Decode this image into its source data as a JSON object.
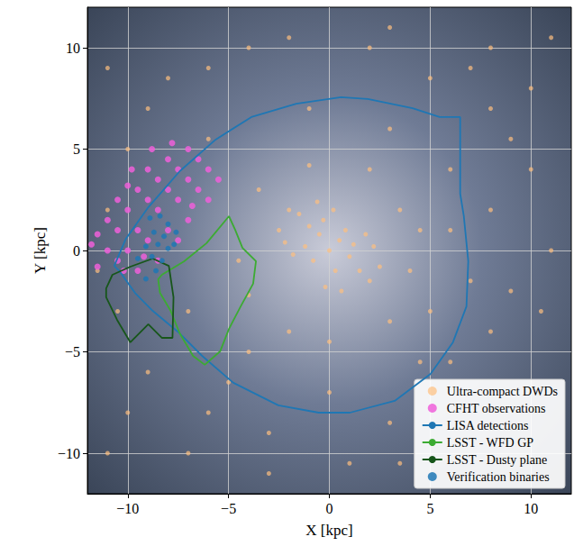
{
  "chart_data": {
    "type": "scatter",
    "x_label": "X [kpc]",
    "y_label": "Y [kpc]",
    "xlim": [
      -12,
      12
    ],
    "ylim": [
      -12,
      12
    ],
    "xticks": [
      {
        "value": -10,
        "label": "−10"
      },
      {
        "value": -5,
        "label": "−5"
      },
      0,
      5,
      10
    ],
    "yticks": [
      {
        "value": -10,
        "label": "−10"
      },
      {
        "value": -5,
        "label": "−5"
      },
      0,
      5,
      10
    ],
    "grid": true,
    "legend": "lower right",
    "series": [
      {
        "name": "Ultra-compact DWDs",
        "type": "scatter",
        "marker": "circle",
        "color": "#fdbf7f",
        "values": [
          [
            0,
            0
          ],
          [
            0.5,
            0.5
          ],
          [
            -0.5,
            0.8
          ],
          [
            1,
            -0.3
          ],
          [
            -1,
            1.2
          ],
          [
            1.5,
            -1
          ],
          [
            -1.5,
            1.8
          ],
          [
            0.3,
            -1
          ],
          [
            -0.3,
            1.5
          ],
          [
            0.8,
            1
          ],
          [
            -0.8,
            -0.5
          ],
          [
            2,
            -1.5
          ],
          [
            -2,
            2
          ],
          [
            1.2,
            0.3
          ],
          [
            -1.2,
            0.2
          ],
          [
            0.2,
            2
          ],
          [
            -0.2,
            -1.8
          ],
          [
            2.5,
            -0.8
          ],
          [
            -2.5,
            1
          ],
          [
            1.8,
            0.8
          ],
          [
            -1.8,
            -0.2
          ],
          [
            0.6,
            -2
          ],
          [
            -0.6,
            2.4
          ],
          [
            2.2,
            0.2
          ],
          [
            -2.2,
            0.4
          ],
          [
            3.5,
            2
          ],
          [
            4,
            -1
          ],
          [
            -4,
            -2.2
          ],
          [
            2,
            4
          ],
          [
            -1,
            4.2
          ],
          [
            -3.5,
            3
          ],
          [
            0,
            -4.5
          ],
          [
            3,
            -3.5
          ],
          [
            -2,
            -4
          ],
          [
            4.5,
            1
          ],
          [
            -4.5,
            -0.5
          ],
          [
            6,
            4
          ],
          [
            8,
            2
          ],
          [
            9,
            -2
          ],
          [
            8,
            -4
          ],
          [
            6,
            -5.5
          ],
          [
            3,
            -8.5
          ],
          [
            -3,
            -9
          ],
          [
            -6,
            -8
          ],
          [
            -9,
            -6
          ],
          [
            -10.5,
            -3
          ],
          [
            -11,
            2
          ],
          [
            -9,
            7
          ],
          [
            -6,
            9
          ],
          [
            -2,
            10.5
          ],
          [
            2,
            10
          ],
          [
            5,
            8.5
          ],
          [
            8,
            7
          ],
          [
            10,
            4
          ],
          [
            11,
            0
          ],
          [
            10.5,
            -3
          ],
          [
            9,
            5.5
          ],
          [
            7,
            9
          ],
          [
            3,
            11
          ],
          [
            -4,
            10
          ],
          [
            -8,
            8.5
          ],
          [
            -10,
            5
          ],
          [
            -11.5,
            -1
          ],
          [
            -10,
            -8
          ],
          [
            -7,
            -10
          ],
          [
            -3,
            -11
          ],
          [
            1,
            -10.5
          ],
          [
            3.5,
            -10.5
          ],
          [
            -5,
            -6.5
          ],
          [
            -7,
            -3
          ],
          [
            5,
            -3
          ],
          [
            6,
            1
          ],
          [
            -6,
            5.5
          ],
          [
            -1,
            7
          ],
          [
            3,
            6
          ],
          [
            4.5,
            -5.5
          ],
          [
            8,
            10
          ],
          [
            11,
            10.5
          ],
          [
            10,
            8
          ],
          [
            -11,
            9
          ],
          [
            -11,
            -10
          ],
          [
            0,
            -7
          ],
          [
            -4,
            -5
          ],
          [
            7,
            -1.5
          ]
        ]
      },
      {
        "name": "CFHT observations",
        "type": "scatter",
        "marker": "circle",
        "color": "#ef5fd9",
        "values": [
          [
            -11.5,
            -0.8
          ],
          [
            -11,
            0
          ],
          [
            -11.5,
            0.8
          ],
          [
            -10.5,
            -0.5
          ],
          [
            -10.5,
            1
          ],
          [
            -10,
            2
          ],
          [
            -10,
            0
          ],
          [
            -9.5,
            3
          ],
          [
            -9.5,
            1
          ],
          [
            -9.5,
            -1
          ],
          [
            -9,
            4
          ],
          [
            -9,
            2.5
          ],
          [
            -9,
            0.5
          ],
          [
            -8.5,
            3.5
          ],
          [
            -8.5,
            2
          ],
          [
            -8.5,
            -0.5
          ],
          [
            -8,
            4.5
          ],
          [
            -8,
            3
          ],
          [
            -8,
            1
          ],
          [
            -7.5,
            4
          ],
          [
            -7.5,
            2.5
          ],
          [
            -7.5,
            0.5
          ],
          [
            -7,
            5
          ],
          [
            -7,
            3.5
          ],
          [
            -7,
            1.5
          ],
          [
            -6.5,
            4.5
          ],
          [
            -6.5,
            3
          ],
          [
            -6,
            4
          ],
          [
            -6,
            2.5
          ],
          [
            -5.5,
            3.5
          ],
          [
            -11,
            1.5
          ],
          [
            -10.5,
            2.5
          ],
          [
            -10,
            3.2
          ],
          [
            -11.8,
            0.3
          ],
          [
            -9.8,
            4
          ],
          [
            -8.8,
            5
          ],
          [
            -7.8,
            5.3
          ],
          [
            -6.8,
            2.2
          ],
          [
            -9.2,
            -0.3
          ],
          [
            -10.2,
            -1
          ]
        ]
      },
      {
        "name": "LISA detections",
        "type": "line",
        "line_style": "solid",
        "color": "#1f77b4",
        "values": [
          [
            -10.67,
            -0.76
          ],
          [
            -10.09,
            0.58
          ],
          [
            -8.98,
            2.13
          ],
          [
            -7.42,
            3.91
          ],
          [
            -5.64,
            5.47
          ],
          [
            -3.87,
            6.58
          ],
          [
            -1.64,
            7.24
          ],
          [
            0.58,
            7.56
          ],
          [
            1.91,
            7.47
          ],
          [
            4.13,
            7.02
          ],
          [
            5.47,
            6.58
          ],
          [
            6.49,
            6.58
          ],
          [
            6.49,
            2.8
          ],
          [
            6.67,
            1.69
          ],
          [
            6.89,
            -0.53
          ],
          [
            6.8,
            -2.76
          ],
          [
            6.13,
            -4.53
          ],
          [
            5.02,
            -6.09
          ],
          [
            3.24,
            -7.42
          ],
          [
            1.02,
            -8.0
          ],
          [
            -0.53,
            -8.0
          ],
          [
            -2.53,
            -7.64
          ],
          [
            -4.76,
            -6.53
          ],
          [
            -6.31,
            -5.2
          ],
          [
            -7.42,
            -4.09
          ],
          [
            -8.76,
            -2.98
          ],
          [
            -9.64,
            -2.09
          ],
          [
            -10.44,
            -0.98
          ],
          [
            -10.67,
            -0.76
          ]
        ]
      },
      {
        "name": "LSST - WFD GP",
        "type": "line",
        "line_style": "solid",
        "color": "#3cab32",
        "values": [
          [
            -8.31,
            -1.2
          ],
          [
            -7.2,
            -0.53
          ],
          [
            -6.09,
            0.36
          ],
          [
            -4.98,
            1.69
          ],
          [
            -4.67,
            1.02
          ],
          [
            -4.31,
            0.13
          ],
          [
            -3.64,
            -0.53
          ],
          [
            -3.78,
            -1.64
          ],
          [
            -4.4,
            -2.76
          ],
          [
            -4.98,
            -3.87
          ],
          [
            -5.42,
            -4.98
          ],
          [
            -6.18,
            -5.64
          ],
          [
            -6.76,
            -5.2
          ],
          [
            -7.42,
            -4.09
          ],
          [
            -7.87,
            -2.98
          ],
          [
            -8.4,
            -2.09
          ],
          [
            -8.49,
            -1.42
          ],
          [
            -8.31,
            -1.2
          ]
        ]
      },
      {
        "name": "LSST - Dusty plane",
        "type": "line",
        "line_style": "solid",
        "color": "#17561a",
        "values": [
          [
            -11.07,
            -1.87
          ],
          [
            -10.76,
            -1.2
          ],
          [
            -9.87,
            -0.8
          ],
          [
            -8.76,
            -0.4
          ],
          [
            -7.96,
            -0.76
          ],
          [
            -7.73,
            -2.31
          ],
          [
            -7.78,
            -4.31
          ],
          [
            -8.31,
            -4.31
          ],
          [
            -8.98,
            -3.64
          ],
          [
            -9.87,
            -4.53
          ],
          [
            -10.53,
            -3.42
          ],
          [
            -11.07,
            -2.31
          ],
          [
            -11.07,
            -1.87
          ]
        ]
      },
      {
        "name": "Verification binaries",
        "type": "scatter",
        "marker": "circle",
        "color": "#1f77b4",
        "values": [
          [
            -8.9,
            1.6
          ],
          [
            -8.4,
            1.7
          ],
          [
            -8.0,
            1.3
          ],
          [
            -8.7,
            0.9
          ],
          [
            -8.2,
            0.7
          ],
          [
            -7.6,
            0.9
          ],
          [
            -9.1,
            0.2
          ],
          [
            -8.5,
            0.3
          ],
          [
            -8.0,
            0.1
          ],
          [
            -7.7,
            0.3
          ],
          [
            -8.8,
            -0.3
          ],
          [
            -8.3,
            -0.5
          ],
          [
            -9.5,
            -0.4
          ],
          [
            -8.6,
            -1.0
          ],
          [
            -9.1,
            -1.4
          ]
        ]
      }
    ]
  }
}
